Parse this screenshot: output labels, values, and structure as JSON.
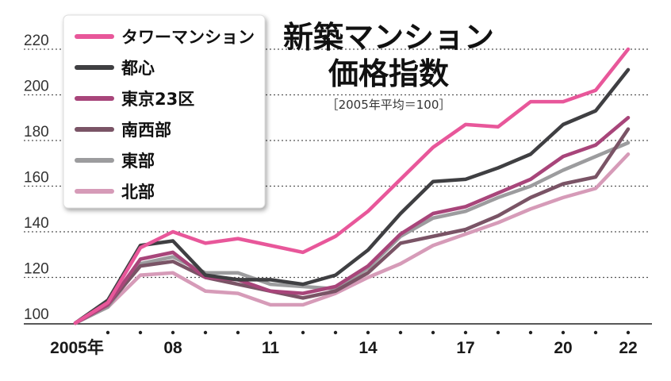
{
  "chart_data": {
    "type": "line",
    "title_line1": "新築マンション",
    "title_line2": "価格指数",
    "subtitle": "［2005年平均＝100］",
    "x": [
      2005,
      2006,
      2007,
      2008,
      2009,
      2010,
      2011,
      2012,
      2013,
      2014,
      2015,
      2016,
      2017,
      2018,
      2019,
      2020,
      2021,
      2022
    ],
    "x_tick_labels": [
      {
        "year": 2005,
        "label": "2005年"
      },
      {
        "year": 2008,
        "label": "08"
      },
      {
        "year": 2011,
        "label": "11"
      },
      {
        "year": 2014,
        "label": "14"
      },
      {
        "year": 2017,
        "label": "17"
      },
      {
        "year": 2020,
        "label": "20"
      },
      {
        "year": 2022,
        "label": "22"
      }
    ],
    "ylim": [
      100,
      220
    ],
    "y_ticks": [
      "100",
      "120",
      "140",
      "160",
      "180",
      "200",
      "220"
    ],
    "series": [
      {
        "name": "タワーマンション",
        "color": "#e8579a",
        "values": [
          100,
          109,
          133,
          140,
          135,
          137,
          134,
          131,
          138,
          149,
          163,
          177,
          187,
          186,
          197,
          197,
          202,
          220
        ]
      },
      {
        "name": "都心",
        "color": "#3f3f42",
        "values": [
          100,
          110,
          134,
          136,
          121,
          119,
          119,
          117,
          121,
          132,
          148,
          162,
          163,
          168,
          174,
          187,
          193,
          211
        ]
      },
      {
        "name": "東京23区",
        "color": "#a8457a",
        "values": [
          100,
          108,
          128,
          131,
          120,
          119,
          114,
          113,
          116,
          125,
          139,
          148,
          151,
          157,
          163,
          173,
          178,
          190
        ]
      },
      {
        "name": "南西部",
        "color": "#7a5466",
        "values": [
          100,
          108,
          125,
          127,
          120,
          117,
          114,
          111,
          114,
          122,
          135,
          138,
          141,
          147,
          155,
          161,
          164,
          185
        ]
      },
      {
        "name": "東部",
        "color": "#9c9c9e",
        "values": [
          100,
          107,
          126,
          129,
          122,
          122,
          117,
          116,
          115,
          124,
          138,
          146,
          149,
          155,
          160,
          167,
          173,
          179
        ]
      },
      {
        "name": "北部",
        "color": "#d69bb8",
        "values": [
          100,
          107,
          121,
          122,
          114,
          113,
          108,
          108,
          113,
          120,
          126,
          134,
          139,
          144,
          150,
          155,
          159,
          174
        ]
      }
    ]
  }
}
